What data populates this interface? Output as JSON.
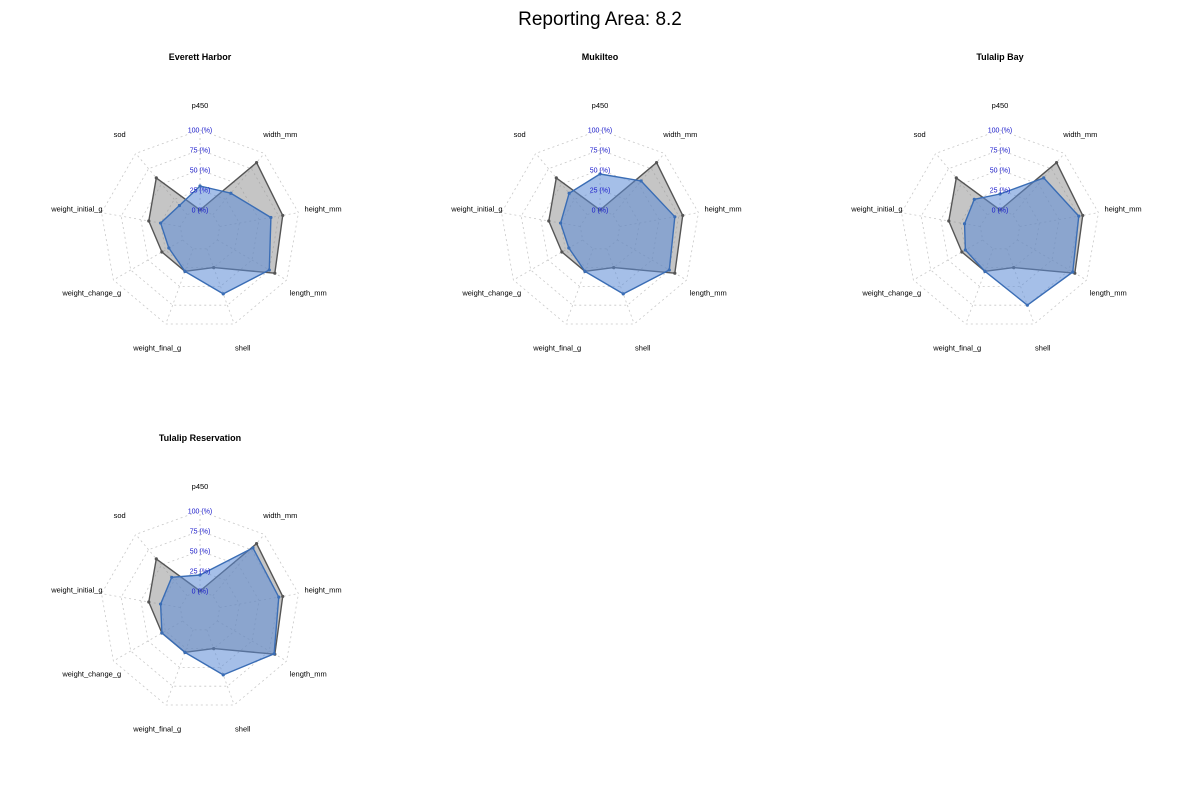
{
  "title": "Reporting Area: 8.2",
  "colors": {
    "reference_fill": "#8c8c8c",
    "reference_line": "#555555",
    "site_fill": "#5b8bd6",
    "site_line": "#3a6db5",
    "grid": "#c8c8c8",
    "ring_label": "#1a1acc"
  },
  "chart_data": [
    {
      "type": "radar",
      "title": "Everett Harbor",
      "axes": [
        "p450",
        "width_mm",
        "height_mm",
        "length_mm",
        "shell",
        "weight_final_g",
        "weight_change_g",
        "weight_initial_g",
        "sod"
      ],
      "ring_labels": [
        "0 (%)",
        "25 (%)",
        "50 (%)",
        "75 (%)",
        "100 (%)"
      ],
      "ylim": [
        0,
        100
      ],
      "series": [
        {
          "values": [
            0,
            85,
            80,
            83,
            25,
            30,
            30,
            40,
            60
          ]
        },
        {
          "values": [
            30,
            35,
            65,
            75,
            60,
            30,
            20,
            25,
            15
          ]
        }
      ]
    },
    {
      "type": "radar",
      "title": "Mukilteo",
      "axes": [
        "p450",
        "width_mm",
        "height_mm",
        "length_mm",
        "shell",
        "weight_final_g",
        "weight_change_g",
        "weight_initial_g",
        "sod"
      ],
      "ring_labels": [
        "0 (%)",
        "25 (%)",
        "50 (%)",
        "75 (%)",
        "100 (%)"
      ],
      "ylim": [
        0,
        100
      ],
      "series": [
        {
          "values": [
            0,
            85,
            80,
            83,
            25,
            30,
            30,
            40,
            60
          ]
        },
        {
          "values": [
            45,
            55,
            70,
            75,
            60,
            30,
            20,
            25,
            35
          ]
        }
      ]
    },
    {
      "type": "radar",
      "title": "Tulalip Bay",
      "axes": [
        "p450",
        "width_mm",
        "height_mm",
        "length_mm",
        "shell",
        "weight_final_g",
        "weight_change_g",
        "weight_initial_g",
        "sod"
      ],
      "ring_labels": [
        "0 (%)",
        "25 (%)",
        "50 (%)",
        "75 (%)",
        "100 (%)"
      ],
      "ylim": [
        0,
        100
      ],
      "series": [
        {
          "values": [
            0,
            85,
            80,
            83,
            25,
            30,
            30,
            40,
            60
          ]
        },
        {
          "values": [
            20,
            60,
            75,
            80,
            75,
            30,
            25,
            20,
            25
          ]
        }
      ]
    },
    {
      "type": "radar",
      "title": "Tulalip Reservation",
      "axes": [
        "p450",
        "width_mm",
        "height_mm",
        "length_mm",
        "shell",
        "weight_final_g",
        "weight_change_g",
        "weight_initial_g",
        "sod"
      ],
      "ring_labels": [
        "0 (%)",
        "25 (%)",
        "50 (%)",
        "75 (%)",
        "100 (%)"
      ],
      "ylim": [
        0,
        100
      ],
      "series": [
        {
          "values": [
            0,
            85,
            80,
            83,
            25,
            30,
            30,
            40,
            60
          ]
        },
        {
          "values": [
            20,
            78,
            75,
            82,
            60,
            30,
            30,
            25,
            30
          ]
        }
      ]
    }
  ]
}
